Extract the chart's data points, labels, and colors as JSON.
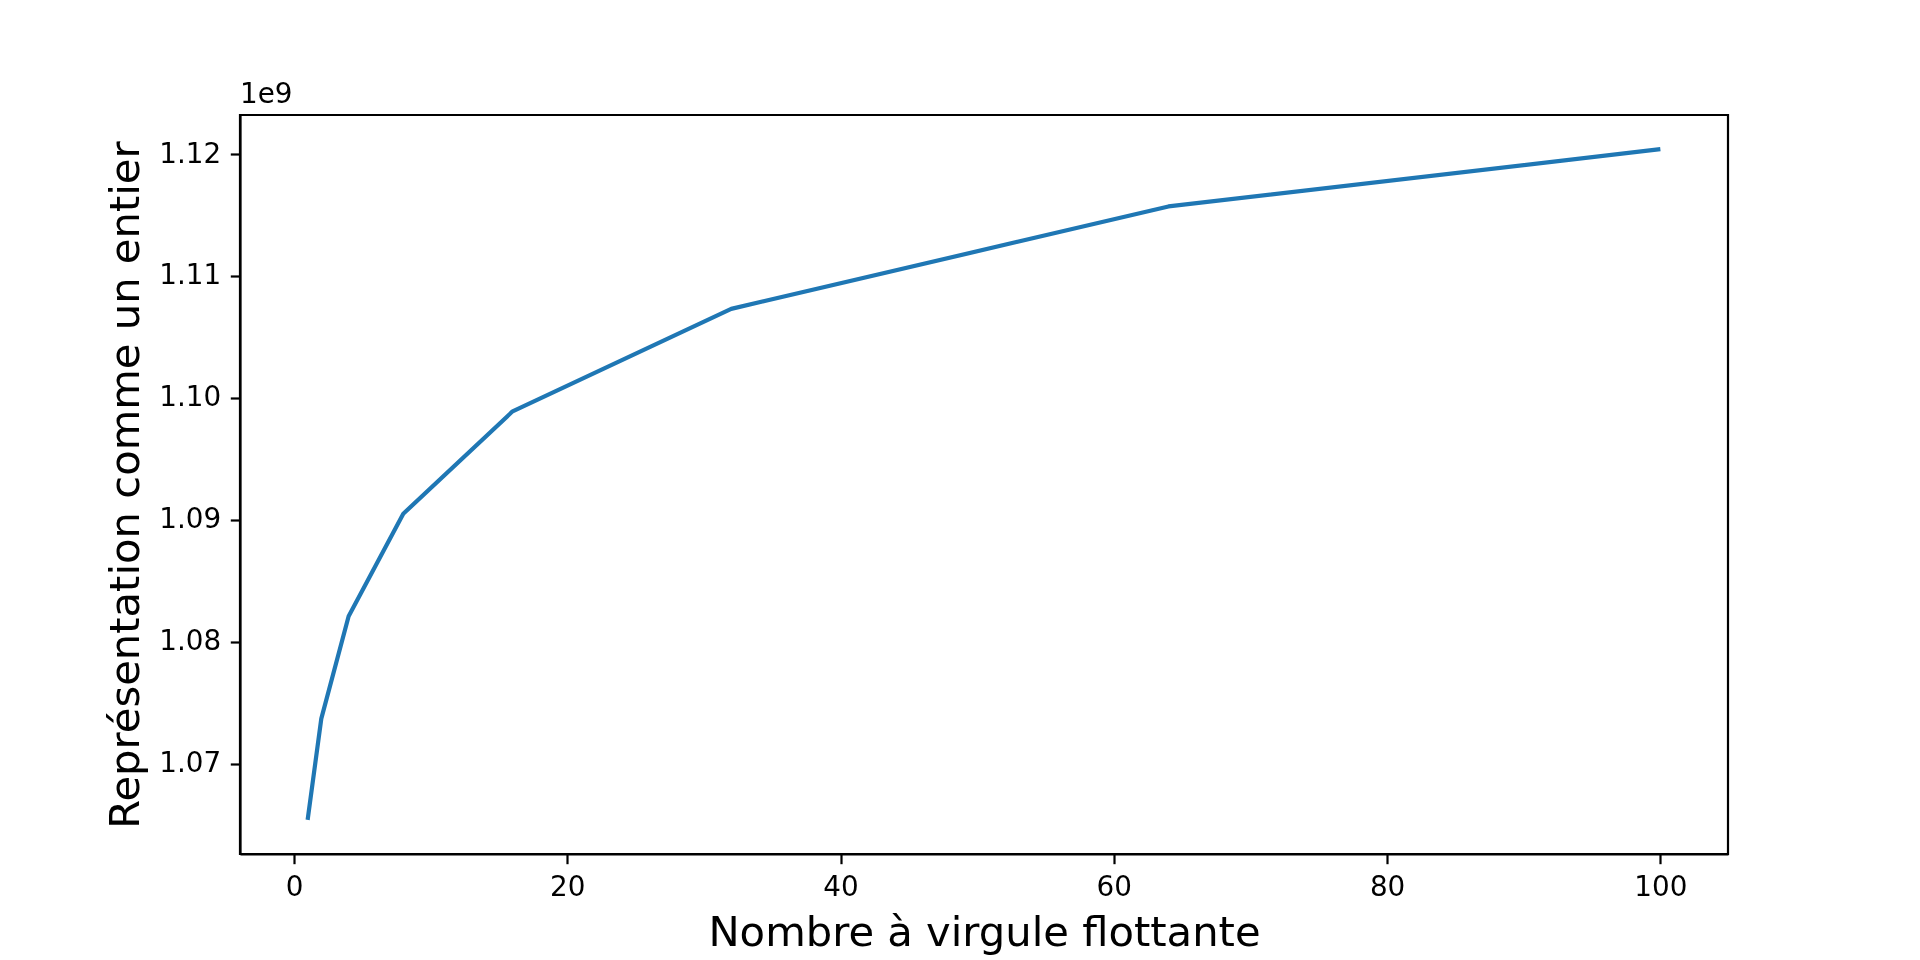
{
  "chart_data": {
    "type": "line",
    "xlabel": "Nombre à virgule flottante",
    "ylabel": "Représentation comme un entier",
    "annotations": [
      "1e9"
    ],
    "x": [
      1,
      2,
      4,
      8,
      16,
      32,
      64,
      100
    ],
    "series": [
      {
        "color": "#1f77b4",
        "values": [
          1.0654,
          1.0737,
          1.0821,
          1.0905,
          1.0989,
          1.1073,
          1.1157,
          1.1204
        ]
      }
    ],
    "xlim": [
      -3.95,
      104.95
    ],
    "ylim": [
      1.0626,
      1.1232
    ],
    "xticks": [
      0,
      20,
      40,
      60,
      80,
      100
    ],
    "yticks": [
      1.07,
      1.08,
      1.09,
      {
        "value": 1.1,
        "label": "1.10"
      },
      1.11,
      1.12
    ],
    "line_style": "solid"
  }
}
